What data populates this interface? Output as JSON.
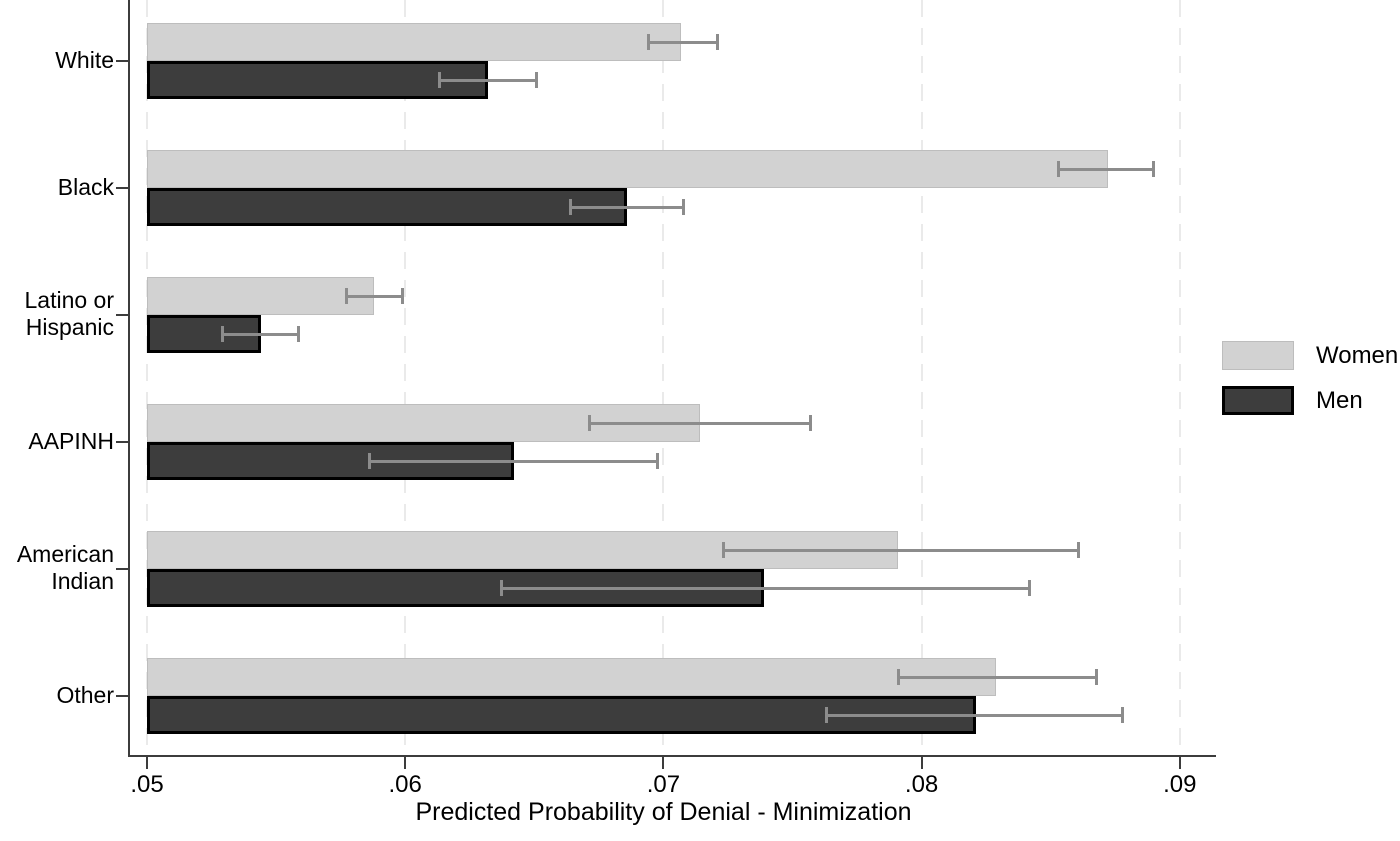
{
  "chart_data": {
    "type": "bar",
    "orientation": "horizontal-grouped-with-error-bars",
    "title": "",
    "xlabel": "Predicted Probability of Denial - Minimization",
    "ylabel": "",
    "categories": [
      "White",
      "Black",
      "Latino or Hispanic",
      "AAPINH",
      "American Indian",
      "Other"
    ],
    "category_label_lines": [
      [
        "White"
      ],
      [
        "Black"
      ],
      [
        "Latino or",
        "Hispanic"
      ],
      [
        "AAPINH"
      ],
      [
        "American",
        "Indian"
      ],
      [
        "Other"
      ]
    ],
    "xlim": [
      0.05,
      0.09
    ],
    "x_ticks": [
      0.05,
      0.06,
      0.07,
      0.08,
      0.09
    ],
    "x_tick_labels": [
      ".05",
      ".06",
      ".07",
      ".08",
      ".09"
    ],
    "grid": "vertical-dashed-light",
    "legend_position": "right-middle",
    "legend_entries": [
      "Women",
      "Men"
    ],
    "series": [
      {
        "name": "Women",
        "fill_color": "#d2d2d2",
        "border_color": "#bdbdbd",
        "values": [
          0.0707,
          0.0872,
          0.0588,
          0.0714,
          0.0791,
          0.0829
        ],
        "ci_low": [
          0.0694,
          0.0853,
          0.0577,
          0.0671,
          0.0723,
          0.0791
        ],
        "ci_high": [
          0.0721,
          0.089,
          0.0599,
          0.0757,
          0.0861,
          0.0868
        ]
      },
      {
        "name": "Men",
        "fill_color": "#3d3d3d",
        "border_color": "#000000",
        "values": [
          0.0632,
          0.0686,
          0.0544,
          0.0642,
          0.0739,
          0.0821
        ],
        "ci_low": [
          0.0613,
          0.0664,
          0.0529,
          0.0586,
          0.0637,
          0.0763
        ],
        "ci_high": [
          0.0651,
          0.0708,
          0.0559,
          0.0698,
          0.0842,
          0.0878
        ]
      }
    ],
    "error_bar_color": "#8c8c8c",
    "background_color": "#ffffff"
  }
}
